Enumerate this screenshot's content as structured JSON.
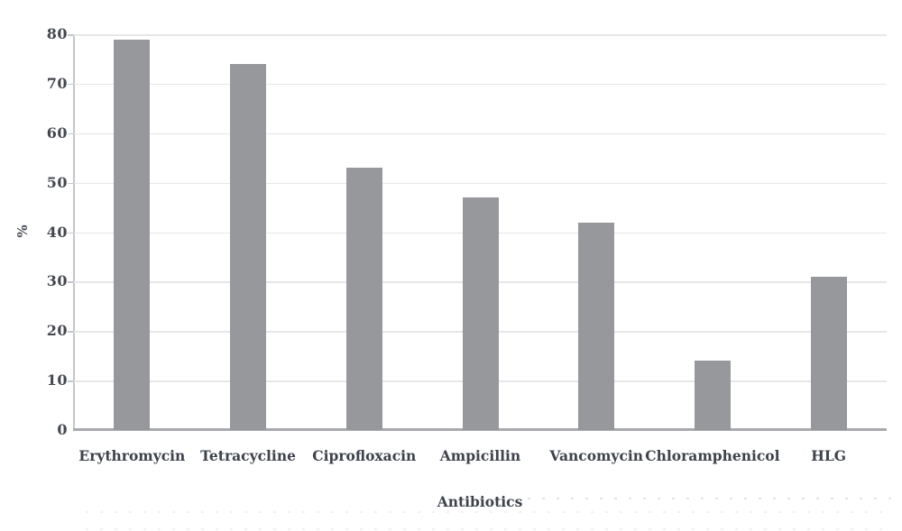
{
  "chart_data": {
    "type": "bar",
    "categories": [
      "Erythromycin",
      "Tetracycline",
      "Ciprofloxacin",
      "Ampicillin",
      "Vancomycin",
      "Chloramphenicol",
      "HLG"
    ],
    "values": [
      79,
      74,
      53,
      47,
      42,
      14,
      31
    ],
    "title": "",
    "xlabel": "Antibiotics",
    "ylabel": "%",
    "ylim": [
      0,
      80
    ],
    "yticks": [
      0,
      10,
      20,
      30,
      40,
      50,
      60,
      70,
      80
    ],
    "grid": true,
    "legend": false,
    "bar_color": "#97989b",
    "gridline_color": "#e7e7ea",
    "axis_color": "#c5c6ca",
    "baseline_color": "#a9aaae",
    "text_color": "#3e424a"
  }
}
